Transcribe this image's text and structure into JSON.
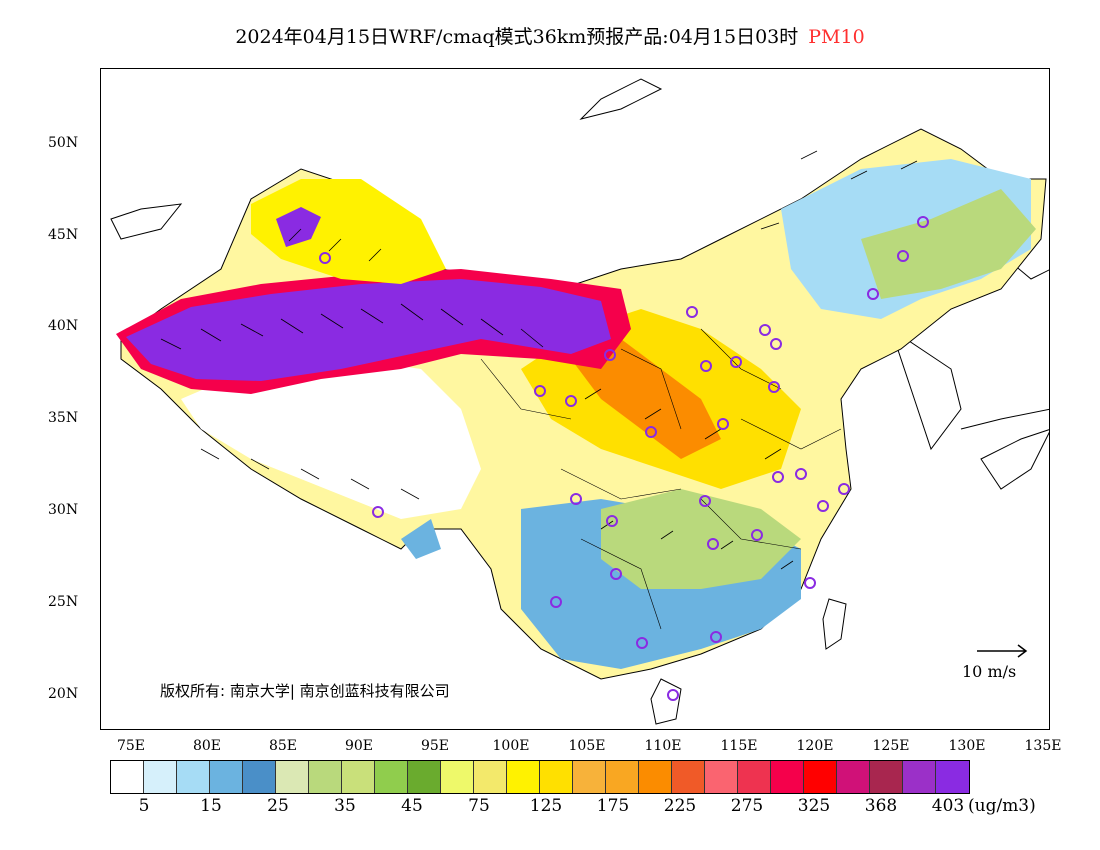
{
  "header": {
    "title": "2024年04月15日WRF/cmaq模式36km预报产品:04月15日03时",
    "variable": "PM10",
    "variable_color": "#ff3030"
  },
  "map": {
    "lat_labels": [
      "50N",
      "45N",
      "40N",
      "35N",
      "30N",
      "25N",
      "20N"
    ],
    "lon_labels": [
      "75E",
      "80E",
      "85E",
      "90E",
      "95E",
      "100E",
      "105E",
      "110E",
      "115E",
      "120E",
      "125E",
      "130E",
      "135E"
    ],
    "copyright": "版权所有: 南京大学| 南京创蓝科技有限公司",
    "vector_label": "10 m/s",
    "city_marker_color": "#8a2be2"
  },
  "legend": {
    "colors": [
      "#ffffff",
      "#d6f0fb",
      "#a6dcf5",
      "#6bb3e0",
      "#4a8fc8",
      "#dbe8b4",
      "#b9d97c",
      "#c9e07a",
      "#90cd4d",
      "#6aab2e",
      "#eef96a",
      "#f3e96b",
      "#fff200",
      "#ffe000",
      "#f7b23a",
      "#f9a722",
      "#fb8c00",
      "#f05a28",
      "#fa6470",
      "#ee3350",
      "#f5004b",
      "#ff0000",
      "#d01178",
      "#a8264f",
      "#9b30c8",
      "#8a2be2"
    ],
    "labels": [
      "5",
      "15",
      "25",
      "35",
      "45",
      "75",
      "125",
      "175",
      "225",
      "275",
      "325",
      "368",
      "403"
    ],
    "unit": "(ug/m3)"
  }
}
